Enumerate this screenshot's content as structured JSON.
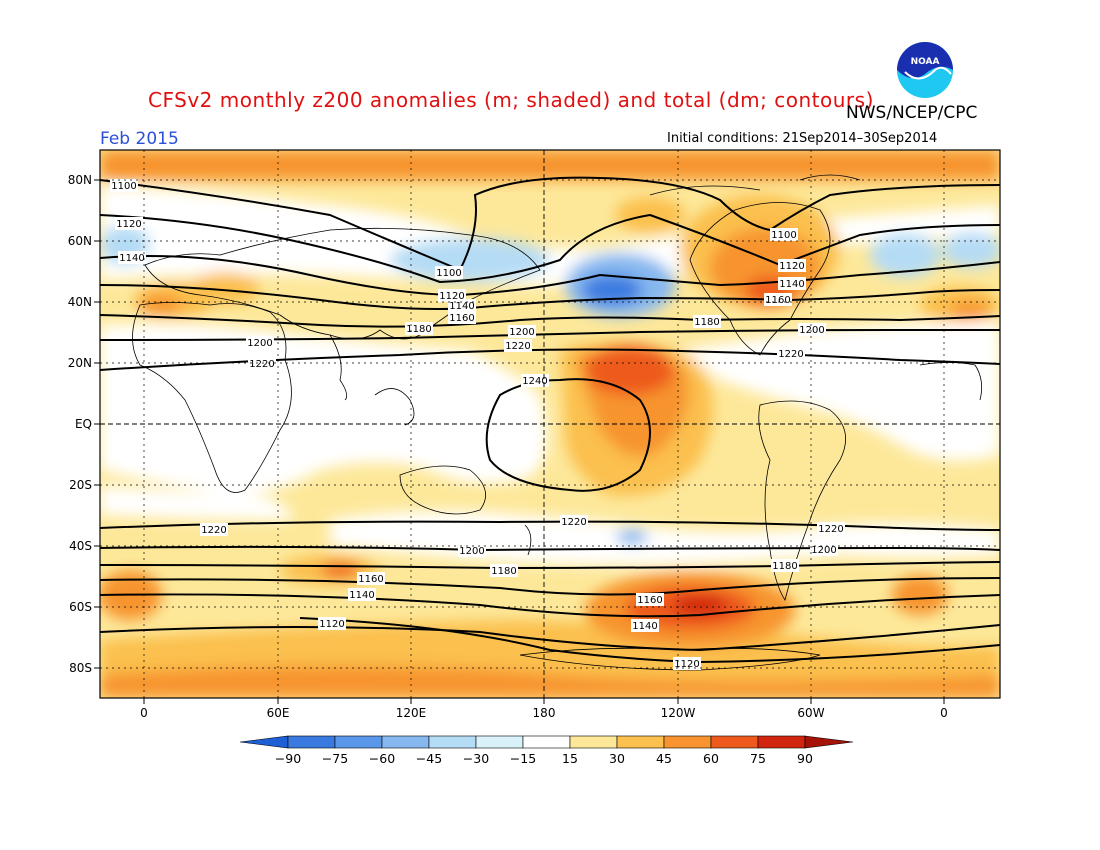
{
  "title": "CFSv2 monthly z200 anomalies (m; shaded) and total (dm; contours)",
  "agency": "NWS/NCEP/CPC",
  "month": "Feb 2015",
  "initial_conditions": "Initial conditions: 21Sep2014–30Sep2014",
  "lat_labels": [
    "80N",
    "60N",
    "40N",
    "20N",
    "EQ",
    "20S",
    "40S",
    "60S",
    "80S"
  ],
  "lon_labels": [
    "0",
    "60E",
    "120E",
    "180",
    "120W",
    "60W",
    "0"
  ],
  "colorbar": {
    "labels": [
      "−90",
      "−75",
      "−60",
      "−45",
      "−30",
      "−15",
      "15",
      "30",
      "45",
      "60",
      "75",
      "90"
    ],
    "colors": [
      "#1f5fd6",
      "#3a7ae0",
      "#5a97e8",
      "#86b8ef",
      "#b5dcf5",
      "#d9f2fa",
      "#ffffff",
      "#fde89a",
      "#fbc04e",
      "#f7942f",
      "#ee5a1d",
      "#d2250f",
      "#a51208"
    ]
  },
  "contour_labels": [
    "1100",
    "1120",
    "1140",
    "1160",
    "1180",
    "1200",
    "1220",
    "1240"
  ],
  "colors": {
    "title": "#e01010",
    "month": "#2a4fd8"
  }
}
